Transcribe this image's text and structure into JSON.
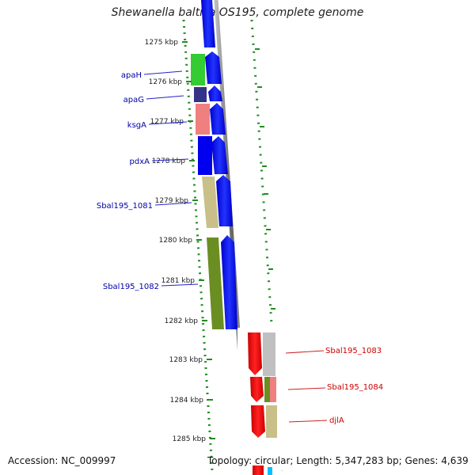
{
  "title": "Shewanella baltica OS195, complete genome",
  "footer": {
    "accession": "Accession: NC_009997",
    "topology": "Topology: circular; Length: 5,347,283 bp; Genes: 4,639"
  },
  "ticks": [
    "1275 kbp",
    "1276 kbp",
    "1277 kbp",
    "1278 kbp",
    "1279 kbp",
    "1280 kbp",
    "1281 kbp",
    "1282 kbp",
    "1283 kbp",
    "1284 kbp",
    "1285 kbp"
  ],
  "genes_left": [
    {
      "label": "apaH",
      "color": "#0000aa"
    },
    {
      "label": "apaG",
      "color": "#0000aa"
    },
    {
      "label": "ksgA",
      "color": "#0000aa"
    },
    {
      "label": "pdxA",
      "color": "#0000aa"
    },
    {
      "label": "Sbal195_1081",
      "color": "#0000aa"
    },
    {
      "label": "Sbal195_1082",
      "color": "#0000aa"
    }
  ],
  "genes_right": [
    {
      "label": "Sbal195_1083",
      "color": "#cc0000"
    },
    {
      "label": "Sbal195_1084",
      "color": "#cc0000"
    },
    {
      "label": "djlA",
      "color": "#cc0000"
    }
  ],
  "colors": {
    "forward": "#0000ff",
    "reverse": "#ff0000",
    "backbone": "#808080",
    "tick": "#228b22",
    "cog_green": "#33cc33",
    "cog_navy": "#333388",
    "cog_pink": "#f08080",
    "cog_tan": "#c8c088",
    "cog_olive": "#6b8e23",
    "cog_grey": "#c0c0c0"
  }
}
